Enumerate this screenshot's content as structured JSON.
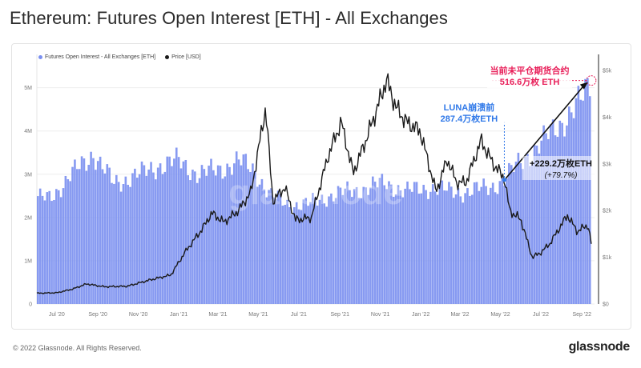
{
  "page": {
    "title": "Ethereum: Futures Open Interest [ETH] - All Exchanges",
    "footer": "© 2022 Glassnode. All Rights Reserved.",
    "brand": "glassnode",
    "watermark": "glassnode"
  },
  "chart_data": {
    "type": "bar",
    "legend_position": "top-left",
    "grid": true,
    "series": [
      {
        "name": "Futures Open Interest - All Exchanges [ETH]",
        "type": "bar",
        "axis": "left",
        "color": "#7a8ff0",
        "anchors": [
          [
            "2020-06-01",
            2.4
          ],
          [
            "2020-06-20",
            2.5
          ],
          [
            "2020-07-15",
            2.8
          ],
          [
            "2020-08-05",
            3.2
          ],
          [
            "2020-08-25",
            3.5
          ],
          [
            "2020-09-05",
            3.2
          ],
          [
            "2020-09-25",
            2.8
          ],
          [
            "2020-10-15",
            2.9
          ],
          [
            "2020-11-05",
            3.0
          ],
          [
            "2020-12-01",
            3.2
          ],
          [
            "2021-01-01",
            3.3
          ],
          [
            "2021-02-01",
            3.0
          ],
          [
            "2021-03-01",
            3.1
          ],
          [
            "2021-04-01",
            3.3
          ],
          [
            "2021-04-25",
            3.1
          ],
          [
            "2021-05-20",
            2.5
          ],
          [
            "2021-06-15",
            2.3
          ],
          [
            "2021-07-15",
            2.3
          ],
          [
            "2021-08-15",
            2.5
          ],
          [
            "2021-09-15",
            2.6
          ],
          [
            "2021-10-15",
            2.7
          ],
          [
            "2021-11-10",
            2.8
          ],
          [
            "2021-12-10",
            2.6
          ],
          [
            "2022-01-15",
            2.7
          ],
          [
            "2022-02-15",
            2.6
          ],
          [
            "2022-03-15",
            2.6
          ],
          [
            "2022-04-15",
            2.7
          ],
          [
            "2022-05-07",
            2.87
          ],
          [
            "2022-06-01",
            3.3
          ],
          [
            "2022-07-01",
            3.7
          ],
          [
            "2022-08-01",
            4.2
          ],
          [
            "2022-09-01",
            4.7
          ],
          [
            "2022-09-15",
            5.166
          ]
        ]
      },
      {
        "name": "Price [USD]",
        "type": "line",
        "axis": "right",
        "color": "#1a1a1a",
        "anchors": [
          [
            "2020-06-01",
            230
          ],
          [
            "2020-07-01",
            240
          ],
          [
            "2020-07-25",
            320
          ],
          [
            "2020-08-15",
            430
          ],
          [
            "2020-09-10",
            370
          ],
          [
            "2020-10-15",
            380
          ],
          [
            "2020-11-20",
            520
          ],
          [
            "2020-12-20",
            620
          ],
          [
            "2021-01-10",
            1100
          ],
          [
            "2021-02-05",
            1600
          ],
          [
            "2021-02-20",
            1950
          ],
          [
            "2021-03-10",
            1750
          ],
          [
            "2021-04-01",
            2000
          ],
          [
            "2021-04-20",
            2400
          ],
          [
            "2021-05-12",
            4200
          ],
          [
            "2021-05-23",
            2200
          ],
          [
            "2021-06-10",
            2500
          ],
          [
            "2021-06-26",
            1800
          ],
          [
            "2021-07-20",
            1850
          ],
          [
            "2021-08-15",
            3200
          ],
          [
            "2021-09-03",
            3900
          ],
          [
            "2021-09-21",
            2800
          ],
          [
            "2021-10-10",
            3500
          ],
          [
            "2021-10-30",
            4300
          ],
          [
            "2021-11-10",
            4800
          ],
          [
            "2021-11-25",
            4200
          ],
          [
            "2021-12-10",
            3900
          ],
          [
            "2021-12-31",
            3700
          ],
          [
            "2022-01-24",
            2400
          ],
          [
            "2022-02-10",
            3100
          ],
          [
            "2022-02-24",
            2600
          ],
          [
            "2022-03-10",
            2600
          ],
          [
            "2022-04-02",
            3500
          ],
          [
            "2022-04-20",
            3000
          ],
          [
            "2022-05-07",
            2700
          ],
          [
            "2022-05-15",
            2000
          ],
          [
            "2022-06-01",
            1800
          ],
          [
            "2022-06-18",
            1000
          ],
          [
            "2022-07-01",
            1100
          ],
          [
            "2022-07-15",
            1300
          ],
          [
            "2022-08-10",
            1900
          ],
          [
            "2022-08-25",
            1550
          ],
          [
            "2022-09-10",
            1700
          ],
          [
            "2022-09-15",
            1300
          ]
        ]
      }
    ],
    "y_left": {
      "range": [
        0,
        5.4
      ],
      "ticks": [
        0,
        1,
        2,
        3,
        4,
        5
      ],
      "tick_labels": [
        "0",
        "1M",
        "2M",
        "3M",
        "4M",
        "5M"
      ]
    },
    "y_right": {
      "range": [
        0,
        5000
      ],
      "ticks": [
        0,
        1000,
        2000,
        3000,
        4000,
        5000
      ],
      "tick_labels": [
        "$0",
        "$1k",
        "$2k",
        "$3k",
        "$4k",
        "$5k"
      ]
    },
    "x_range": [
      "2020-06-01",
      "2022-09-20"
    ],
    "x_ticks": [
      {
        "date": "2020-07-01",
        "label": "Jul '20"
      },
      {
        "date": "2020-09-01",
        "label": "Sep '20"
      },
      {
        "date": "2020-11-01",
        "label": "Nov '20"
      },
      {
        "date": "2021-01-01",
        "label": "Jan '21"
      },
      {
        "date": "2021-03-01",
        "label": "Mar '21"
      },
      {
        "date": "2021-05-01",
        "label": "May '21"
      },
      {
        "date": "2021-07-01",
        "label": "Jul '21"
      },
      {
        "date": "2021-09-01",
        "label": "Sep '21"
      },
      {
        "date": "2021-11-01",
        "label": "Nov '21"
      },
      {
        "date": "2022-01-01",
        "label": "Jan '22"
      },
      {
        "date": "2022-03-01",
        "label": "Mar '22"
      },
      {
        "date": "2022-05-01",
        "label": "May '22"
      },
      {
        "date": "2022-07-01",
        "label": "Jul '22"
      },
      {
        "date": "2022-09-01",
        "label": "Sep '22"
      }
    ],
    "annotations": {
      "luna": {
        "date": "2022-05-07",
        "value": 2.87,
        "line1": "LUNA崩溃前",
        "line2": "287.4万枚ETH",
        "color": "#2f78e8"
      },
      "current": {
        "date": "2022-09-15",
        "value": 5.166,
        "line1": "当前未平仓期货合约",
        "line2": "516.6万枚 ETH",
        "color": "#e8205a"
      },
      "change": {
        "line1": "+229.2万枚ETH",
        "line2": "(+79.7%)",
        "color": "#111111"
      }
    }
  }
}
